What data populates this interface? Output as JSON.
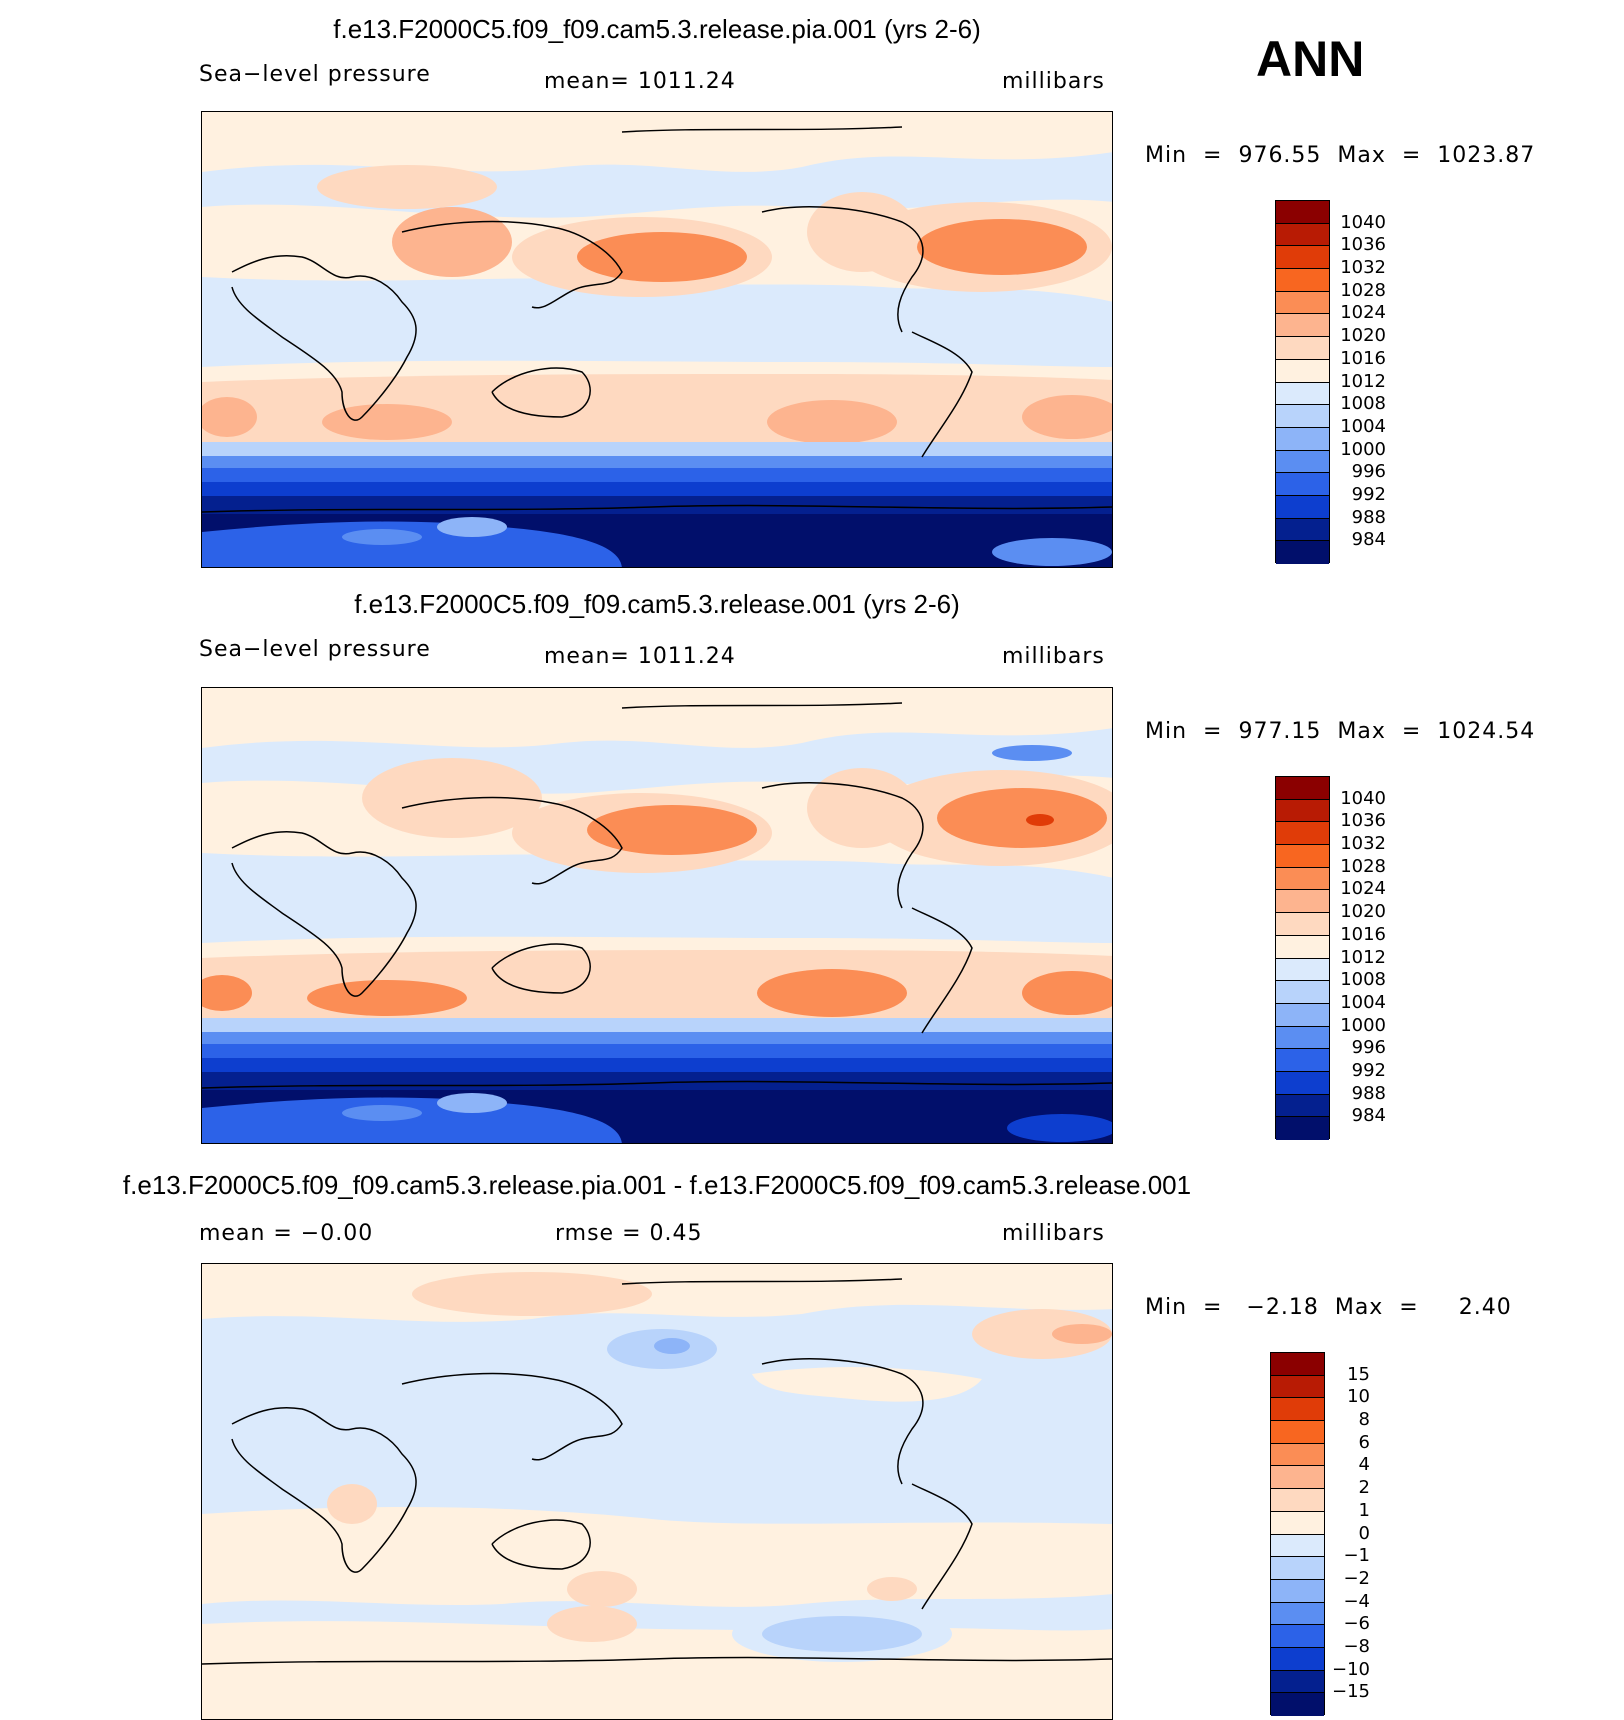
{
  "header": {
    "season": "ANN"
  },
  "panels": [
    {
      "title": "f.e13.F2000C5.f09_f09.cam5.3.release.pia.001 (yrs 2-6)",
      "left": "Sea−level pressure",
      "center": "mean=  1011.24",
      "units": "millibars",
      "minmax": "Min  =  976.55  Max  =  1023.87",
      "kind": "field"
    },
    {
      "title": "f.e13.F2000C5.f09_f09.cam5.3.release.001 (yrs 2-6)",
      "left": "Sea−level pressure",
      "center": "mean=  1011.24",
      "units": "millibars",
      "minmax": "Min  =  977.15  Max  =  1024.54",
      "kind": "field"
    },
    {
      "title": "f.e13.F2000C5.f09_f09.cam5.3.release.pia.001 - f.e13.F2000C5.f09_f09.cam5.3.release.001",
      "left": "mean  =   −0.00",
      "center": "rmse  =     0.45",
      "units": "millibars",
      "minmax": "Min  =   −2.18  Max  =     2.40",
      "kind": "diff"
    }
  ],
  "colorbars": {
    "field": {
      "labels": [
        "1040",
        "1036",
        "1032",
        "1028",
        "1024",
        "1020",
        "1016",
        "1012",
        "1008",
        "1004",
        "1000",
        "996",
        "992",
        "988",
        "984"
      ],
      "colors": [
        "#8b0000",
        "#b81b04",
        "#e03c08",
        "#f86620",
        "#fb8d55",
        "#fdb48f",
        "#fed9c0",
        "#fff1e0",
        "#dbeafc",
        "#b8d3fb",
        "#8db4f8",
        "#5b8ef2",
        "#2c62e8",
        "#0d3ecf",
        "#04208f",
        "#010f6b"
      ]
    },
    "diff": {
      "labels": [
        "15",
        "10",
        "8",
        "6",
        "4",
        "2",
        "1",
        "0",
        "−1",
        "−2",
        "−4",
        "−6",
        "−8",
        "−10",
        "−15"
      ],
      "colors": [
        "#8b0000",
        "#b81b04",
        "#e03c08",
        "#f86620",
        "#fb8d55",
        "#fdb48f",
        "#fed9c0",
        "#fff1e0",
        "#dbeafc",
        "#b8d3fb",
        "#8db4f8",
        "#5b8ef2",
        "#2c62e8",
        "#0d3ecf",
        "#04208f",
        "#010f6b"
      ]
    }
  }
}
